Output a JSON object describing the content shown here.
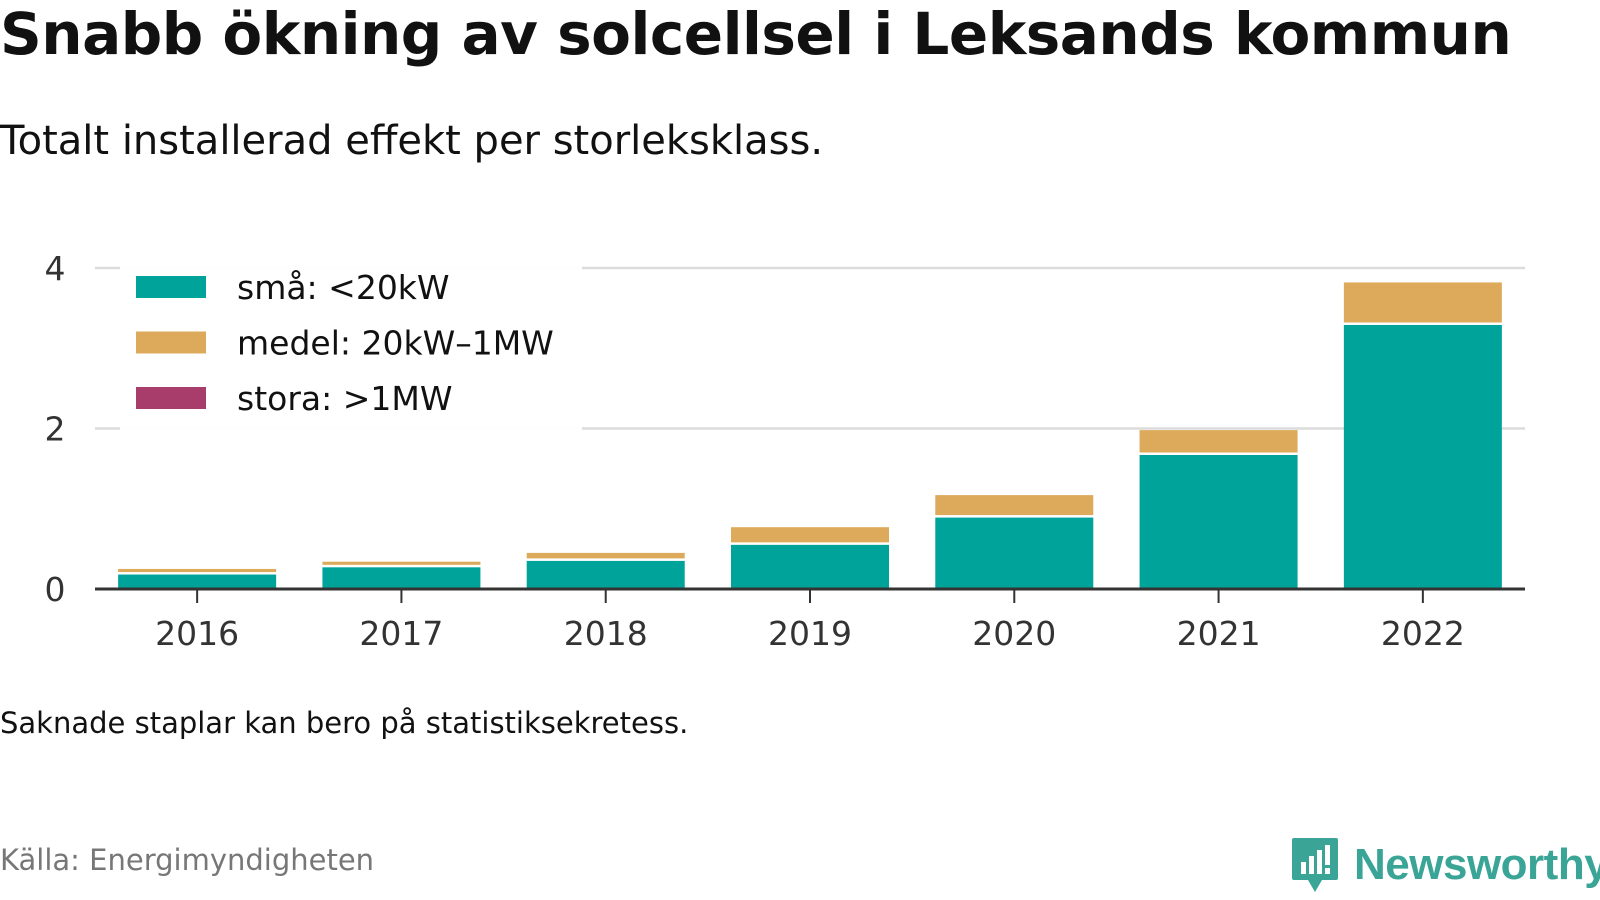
{
  "header": {
    "title": "Snabb ökning av solcellsel i Leksands kommun",
    "subtitle": "Totalt installerad effekt per storleksklass."
  },
  "footer": {
    "note": "Saknade staplar kan bero på statistiksekretess.",
    "source": "Källa: Energimyndigheten",
    "brand": "Newsworthy",
    "brand_icon": "newsworthy-logo-icon"
  },
  "chart_data": {
    "type": "bar",
    "stacked": true,
    "categories": [
      "2016",
      "2017",
      "2018",
      "2019",
      "2020",
      "2021",
      "2022"
    ],
    "series": [
      {
        "name": "små: <20kW",
        "color": "#00a39a",
        "values": [
          0.18,
          0.27,
          0.35,
          0.55,
          0.89,
          1.67,
          3.29
        ]
      },
      {
        "name": "medel: 20kW–1MW",
        "color": "#dcaa5a",
        "values": [
          0.07,
          0.07,
          0.1,
          0.22,
          0.28,
          0.31,
          0.53
        ]
      },
      {
        "name": "stora: >1MW",
        "color": "#a83d6c",
        "values": [
          0,
          0,
          0,
          0,
          0,
          0,
          0
        ]
      }
    ],
    "y_ticks": [
      0,
      2,
      4
    ],
    "ylim": [
      0,
      4
    ],
    "grid": true,
    "legend_position": "top-left"
  }
}
